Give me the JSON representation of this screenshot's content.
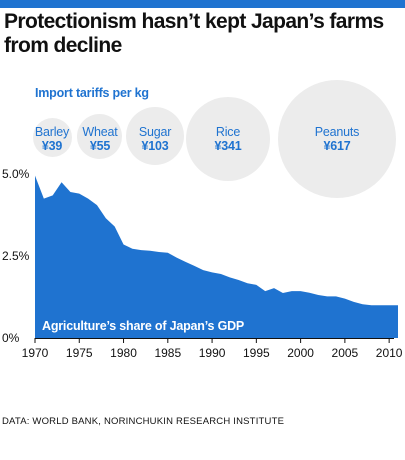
{
  "title": "Protectionism hasn’t kept Japan’s farms from decline",
  "tariffs": {
    "label": "Import tariffs per kg",
    "items": [
      {
        "name": "Barley",
        "price": "¥39",
        "value": 39
      },
      {
        "name": "Wheat",
        "price": "¥55",
        "value": 55
      },
      {
        "name": "Sugar",
        "price": "¥103",
        "value": 103
      },
      {
        "name": "Rice",
        "price": "¥341",
        "value": 341
      },
      {
        "name": "Peanuts",
        "price": "¥617",
        "value": 617
      }
    ]
  },
  "chart_data": {
    "type": "area",
    "title": "Agriculture’s share of Japan’s GDP",
    "xlabel": "",
    "ylabel": "",
    "xlim": [
      1970,
      2011
    ],
    "ylim": [
      0,
      5.0
    ],
    "x_ticks": [
      1970,
      1975,
      1980,
      1985,
      1990,
      1995,
      2000,
      2005,
      2010
    ],
    "y_ticks": [
      {
        "value": 0,
        "label": "0%"
      },
      {
        "value": 2.5,
        "label": "2.5%"
      },
      {
        "value": 5.0,
        "label": "5.0%"
      }
    ],
    "grid": false,
    "color": "#1f73d0",
    "x": [
      1970,
      1971,
      1972,
      1973,
      1974,
      1975,
      1976,
      1977,
      1978,
      1979,
      1980,
      1981,
      1982,
      1983,
      1984,
      1985,
      1986,
      1987,
      1988,
      1989,
      1990,
      1991,
      1992,
      1993,
      1994,
      1995,
      1996,
      1997,
      1998,
      1999,
      2000,
      2001,
      2002,
      2003,
      2004,
      2005,
      2006,
      2007,
      2008,
      2009,
      2010,
      2011
    ],
    "values": [
      4.95,
      4.25,
      4.35,
      4.75,
      4.45,
      4.4,
      4.25,
      4.05,
      3.65,
      3.4,
      2.85,
      2.72,
      2.68,
      2.66,
      2.62,
      2.6,
      2.45,
      2.32,
      2.2,
      2.07,
      2.0,
      1.95,
      1.85,
      1.77,
      1.67,
      1.62,
      1.43,
      1.52,
      1.37,
      1.43,
      1.43,
      1.38,
      1.31,
      1.27,
      1.27,
      1.2,
      1.1,
      1.03,
      1.0,
      1.0,
      1.0,
      1.0
    ]
  },
  "source": "DATA: WORLD BANK, NORINCHUKIN RESEARCH INSTITUTE"
}
